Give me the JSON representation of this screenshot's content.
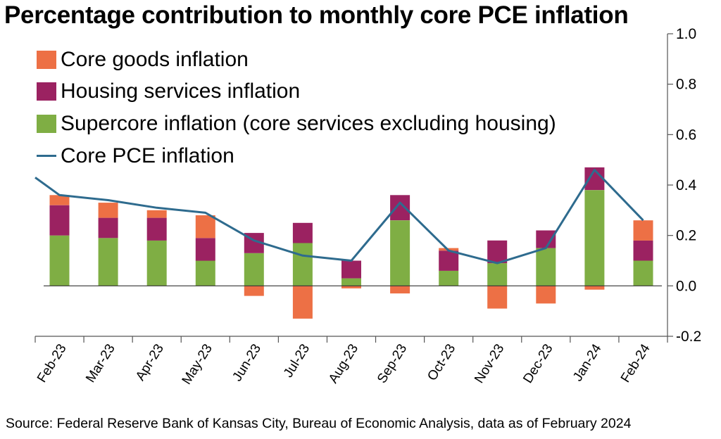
{
  "title": "Percentage contribution to monthly core PCE inflation",
  "source": "Source: Federal Reserve Bank of Kansas City, Bureau of Economic Analysis, data as of February 2024",
  "colors": {
    "core_goods": "#ED7045",
    "housing": "#9B2261",
    "supercore": "#7FAE44",
    "core_pce": "#2E6B8E",
    "axis": "#555555",
    "zero_line": "#333333"
  },
  "legend": {
    "core_goods": "Core goods inflation",
    "housing": "Housing services inflation",
    "supercore": "Supercore inflation (core services excluding housing)",
    "core_pce": "Core PCE inflation"
  },
  "chart_data": {
    "type": "bar",
    "stacked": true,
    "title": "Percentage contribution to monthly core PCE inflation",
    "categories": [
      "Feb-23",
      "Mar-23",
      "Apr-23",
      "May-23",
      "Jun-23",
      "Jul-23",
      "Aug-23",
      "Sep-23",
      "Oct-23",
      "Nov-23",
      "Dec-23",
      "Jan-24",
      "Feb-24"
    ],
    "series": [
      {
        "key": "supercore",
        "name": "Supercore inflation (core services excluding housing)",
        "type": "bar",
        "values": [
          0.2,
          0.19,
          0.18,
          0.1,
          0.13,
          0.17,
          0.03,
          0.26,
          0.06,
          0.09,
          0.15,
          0.38,
          0.1
        ]
      },
      {
        "key": "housing",
        "name": "Housing services inflation",
        "type": "bar",
        "values": [
          0.12,
          0.08,
          0.09,
          0.09,
          0.08,
          0.08,
          0.07,
          0.1,
          0.08,
          0.09,
          0.07,
          0.09,
          0.08
        ]
      },
      {
        "key": "core_goods",
        "name": "Core goods inflation",
        "type": "bar",
        "values": [
          0.04,
          0.06,
          0.03,
          0.09,
          -0.04,
          -0.13,
          -0.01,
          -0.03,
          0.01,
          -0.09,
          -0.07,
          -0.015,
          0.08
        ]
      },
      {
        "key": "core_pce",
        "name": "Core PCE inflation",
        "type": "line",
        "values": [
          0.36,
          0.34,
          0.31,
          0.29,
          0.18,
          0.12,
          0.1,
          0.33,
          0.14,
          0.09,
          0.15,
          0.46,
          0.26
        ],
        "left_edge_value": 0.43
      }
    ],
    "y_axis": {
      "position": "right",
      "ylim": [
        -0.2,
        1.0
      ],
      "ticks": [
        -0.2,
        0.0,
        0.2,
        0.4,
        0.6,
        0.8,
        1.0
      ],
      "tick_labels": [
        "-0.2",
        "0.0",
        "0.2",
        "0.4",
        "0.6",
        "0.8",
        "1.0"
      ]
    },
    "xlabel": "",
    "ylabel": "",
    "grid": false,
    "legend_position": "top-left"
  }
}
